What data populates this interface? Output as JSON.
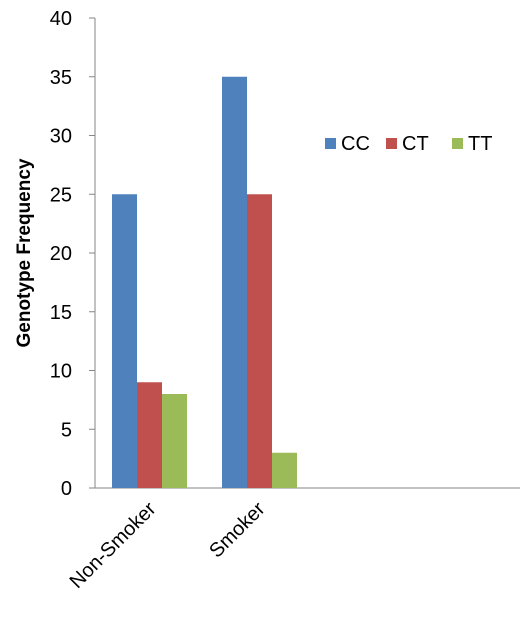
{
  "chart_data": {
    "type": "bar",
    "title": "",
    "xlabel": "",
    "ylabel": "Genotype Frequency",
    "categories": [
      "Non-Smoker",
      "Smoker"
    ],
    "series": [
      {
        "name": "CC",
        "values": [
          25,
          35
        ],
        "color": "#4F81BD"
      },
      {
        "name": "CT",
        "values": [
          9,
          25
        ],
        "color": "#C0504D"
      },
      {
        "name": "TT",
        "values": [
          8,
          3
        ],
        "color": "#9BBB59"
      }
    ],
    "ylim": [
      0,
      40
    ],
    "yticks": [
      0,
      5,
      10,
      15,
      20,
      25,
      30,
      35,
      40
    ],
    "grid": false,
    "legend_position": "right"
  }
}
